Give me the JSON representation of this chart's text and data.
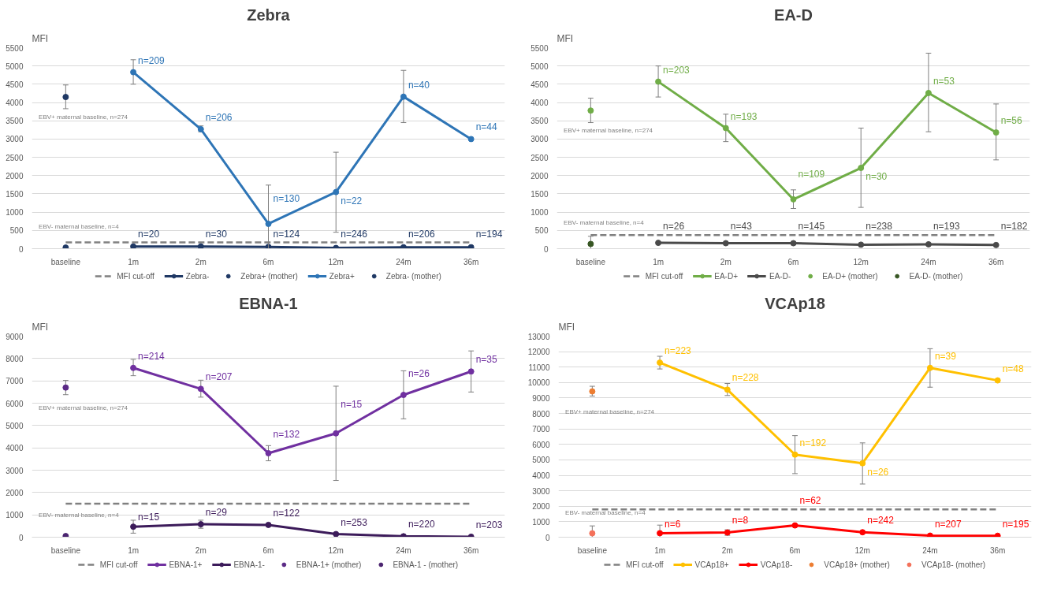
{
  "chart_data": [
    {
      "type": "line",
      "title": "Zebra",
      "ylabel": "MFI",
      "categories": [
        "baseline",
        "1m",
        "2m",
        "6m",
        "12m",
        "24m",
        "36m"
      ],
      "ylim": [
        0,
        5500
      ],
      "yticks": [
        0,
        500,
        1000,
        1500,
        2000,
        2500,
        3000,
        3500,
        4000,
        4500,
        5000,
        5500
      ],
      "grid": "y",
      "legend": "bottom",
      "annotations": [
        {
          "text": "EBV+ maternal baseline, n=274",
          "x": "baseline",
          "y": 4150
        },
        {
          "text": "EBV- maternal baseline, n=4",
          "x": "baseline",
          "y": 30
        },
        {
          "text": "n=20",
          "x": "1m",
          "y": 60
        },
        {
          "text": "n=30",
          "x": "2m",
          "y": 60
        },
        {
          "text": "n=124",
          "x": "6m",
          "y": 50
        },
        {
          "text": "n=246",
          "x": "12m",
          "y": 20
        },
        {
          "text": "n=206",
          "x": "24m",
          "y": 40
        },
        {
          "text": "n=194",
          "x": "36m",
          "y": 40
        },
        {
          "text": "n=209",
          "x": "1m",
          "y": 4830
        },
        {
          "text": "n=206",
          "x": "2m",
          "y": 3270
        },
        {
          "text": "n=130",
          "x": "6m",
          "y": 680
        },
        {
          "text": "n=22",
          "x": "12m",
          "y": 1550
        },
        {
          "text": "n=40",
          "x": "24m",
          "y": 4160
        },
        {
          "text": "n=44",
          "x": "36m",
          "y": 3000
        }
      ],
      "series": [
        {
          "name": "MFI cut-off",
          "type": "line",
          "color": "#808080",
          "line_style": "dashed",
          "marker": "none",
          "values": [
            170,
            170,
            170,
            170,
            170,
            170,
            170
          ]
        },
        {
          "name": "Zebra-",
          "type": "line",
          "color": "#1f3864",
          "marker": "circle",
          "values": [
            null,
            60,
            60,
            50,
            20,
            40,
            40
          ]
        },
        {
          "name": "Zebra+ (mother)",
          "type": "scatter",
          "color": "#1f3864",
          "marker": "circle",
          "values": [
            4150,
            null,
            null,
            null,
            null,
            null,
            null
          ],
          "errors": [
            [
              3830,
              4480
            ],
            null,
            null,
            null,
            null,
            null,
            null
          ]
        },
        {
          "name": "Zebra+",
          "type": "line",
          "color": "#2e75b6",
          "marker": "circle",
          "values": [
            null,
            4830,
            3270,
            680,
            1550,
            4160,
            3000
          ],
          "errors": [
            null,
            [
              4500,
              5170
            ],
            [
              3200,
              3360
            ],
            [
              0,
              1740
            ],
            [
              450,
              2640
            ],
            [
              3450,
              4880
            ],
            null
          ]
        },
        {
          "name": "Zebra- (mother)",
          "type": "scatter",
          "color": "#1f3864",
          "marker": "circle",
          "values": [
            30,
            null,
            null,
            null,
            null,
            null,
            null
          ]
        }
      ]
    },
    {
      "type": "line",
      "title": "EA-D",
      "ylabel": "MFI",
      "categories": [
        "baseline",
        "1m",
        "2m",
        "6m",
        "12m",
        "24m",
        "36m"
      ],
      "ylim": [
        0,
        5500
      ],
      "yticks": [
        0,
        500,
        1000,
        1500,
        2000,
        2500,
        3000,
        3500,
        4000,
        4500,
        5000,
        5500
      ],
      "grid": "y",
      "legend": "bottom",
      "annotations": [
        {
          "text": "EBV+ maternal baseline, n=274",
          "x": "baseline",
          "y": 3780
        },
        {
          "text": "EBV- maternal baseline, n=4",
          "x": "baseline",
          "y": 130
        },
        {
          "text": "n=203",
          "x": "1m",
          "y": 4570
        },
        {
          "text": "n=193",
          "x": "2m",
          "y": 3300
        },
        {
          "text": "n=109",
          "x": "6m",
          "y": 1350
        },
        {
          "text": "n=30",
          "x": "12m",
          "y": 2210
        },
        {
          "text": "n=53",
          "x": "24m",
          "y": 4260
        },
        {
          "text": "n=56",
          "x": "36m",
          "y": 3180
        },
        {
          "text": "n=26",
          "x": "1m",
          "y": 160
        },
        {
          "text": "n=43",
          "x": "2m",
          "y": 150
        },
        {
          "text": "n=145",
          "x": "6m",
          "y": 150
        },
        {
          "text": "n=238",
          "x": "12m",
          "y": 110
        },
        {
          "text": "n=193",
          "x": "24m",
          "y": 120
        },
        {
          "text": "n=182",
          "x": "36m",
          "y": 100
        }
      ],
      "series": [
        {
          "name": "MFI cut-off",
          "type": "line",
          "color": "#808080",
          "line_style": "dashed",
          "marker": "none",
          "values": [
            370,
            370,
            370,
            370,
            370,
            370,
            370
          ]
        },
        {
          "name": "EA-D+",
          "type": "line",
          "color": "#70ad47",
          "marker": "circle",
          "values": [
            null,
            4570,
            3300,
            1350,
            2210,
            4260,
            3180
          ],
          "errors": [
            null,
            [
              4150,
              5000
            ],
            [
              2930,
              3680
            ],
            [
              1100,
              1610
            ],
            [
              1130,
              3300
            ],
            [
              3200,
              5350
            ],
            [
              2430,
              3960
            ]
          ]
        },
        {
          "name": "EA-D-",
          "type": "line",
          "color": "#4a4a4a",
          "marker": "circle",
          "values": [
            null,
            160,
            150,
            150,
            110,
            120,
            100
          ]
        },
        {
          "name": "EA-D+ (mother)",
          "type": "scatter",
          "color": "#70ad47",
          "marker": "circle",
          "values": [
            3780,
            null,
            null,
            null,
            null,
            null,
            null
          ],
          "errors": [
            [
              3450,
              4120
            ],
            null,
            null,
            null,
            null,
            null,
            null
          ]
        },
        {
          "name": "EA-D- (mother)",
          "type": "scatter",
          "color": "#375623",
          "marker": "circle",
          "values": [
            130,
            null,
            null,
            null,
            null,
            null,
            null
          ],
          "errors": [
            [
              0,
              340
            ],
            null,
            null,
            null,
            null,
            null,
            null
          ]
        }
      ]
    },
    {
      "type": "line",
      "title": "EBNA-1",
      "ylabel": "MFI",
      "categories": [
        "baseline",
        "1m",
        "2m",
        "6m",
        "12m",
        "24m",
        "36m"
      ],
      "ylim": [
        0,
        9000
      ],
      "yticks": [
        0,
        1000,
        2000,
        3000,
        4000,
        5000,
        6000,
        7000,
        8000,
        9000
      ],
      "grid": "y",
      "legend": "bottom",
      "annotations": [
        {
          "text": "EBV+ maternal baseline, n=274",
          "x": "baseline",
          "y": 6700
        },
        {
          "text": "EBV- maternal baseline, n=4",
          "x": "baseline",
          "y": 50
        },
        {
          "text": "n=214",
          "x": "1m",
          "y": 7580
        },
        {
          "text": "n=207",
          "x": "2m",
          "y": 6640
        },
        {
          "text": "n=132",
          "x": "6m",
          "y": 3760
        },
        {
          "text": "n=15",
          "x": "12m",
          "y": 4650
        },
        {
          "text": "n=26",
          "x": "24m",
          "y": 6370
        },
        {
          "text": "n=35",
          "x": "36m",
          "y": 7420
        },
        {
          "text": "n=15",
          "x": "1m",
          "y": 470
        },
        {
          "text": "n=29",
          "x": "2m",
          "y": 580
        },
        {
          "text": "n=122",
          "x": "6m",
          "y": 550
        },
        {
          "text": "n=253",
          "x": "12m",
          "y": 140
        },
        {
          "text": "n=220",
          "x": "24m",
          "y": 40
        },
        {
          "text": "n=203",
          "x": "36m",
          "y": 20
        }
      ],
      "series": [
        {
          "name": "MFI cut-off",
          "type": "line",
          "color": "#808080",
          "line_style": "dashed",
          "marker": "none",
          "values": [
            1500,
            1500,
            1500,
            1500,
            1500,
            1500,
            1500
          ]
        },
        {
          "name": "EBNA-1+",
          "type": "line",
          "color": "#7030a0",
          "marker": "circle",
          "values": [
            null,
            7580,
            6640,
            3760,
            4650,
            6370,
            7420
          ],
          "errors": [
            null,
            [
              7230,
              7960
            ],
            [
              6270,
              7030
            ],
            [
              3420,
              4100
            ],
            [
              2540,
              6760
            ],
            [
              5300,
              7450
            ],
            [
              6500,
              8340
            ]
          ]
        },
        {
          "name": "EBNA-1-",
          "type": "line",
          "color": "#3c1b5a",
          "marker": "circle",
          "values": [
            null,
            470,
            580,
            550,
            140,
            40,
            20
          ],
          "errors": [
            null,
            [
              180,
              760
            ],
            [
              400,
              760
            ],
            [
              490,
              610
            ],
            null,
            null,
            null
          ]
        },
        {
          "name": "EBNA-1+ (mother)",
          "type": "scatter",
          "color": "#5b2a86",
          "marker": "circle",
          "values": [
            6700,
            null,
            null,
            null,
            null,
            null,
            null
          ],
          "errors": [
            [
              6380,
              7020
            ],
            null,
            null,
            null,
            null,
            null,
            null
          ]
        },
        {
          "name": "EBNA-1 - (mother)",
          "type": "scatter",
          "color": "#4b2470",
          "marker": "circle",
          "values": [
            50,
            null,
            null,
            null,
            null,
            null,
            null
          ]
        }
      ]
    },
    {
      "type": "line",
      "title": "VCAp18",
      "ylabel": "MFI",
      "categories": [
        "baseline",
        "1m",
        "2m",
        "6m",
        "12m",
        "24m",
        "36m"
      ],
      "ylim": [
        0,
        13000
      ],
      "yticks": [
        0,
        1000,
        2000,
        3000,
        4000,
        5000,
        6000,
        7000,
        8000,
        9000,
        10000,
        11000,
        12000,
        13000
      ],
      "grid": "y",
      "legend": "bottom",
      "annotations": [
        {
          "text": "EBV+ maternal baseline, n=274",
          "x": "baseline",
          "y": 9430
        },
        {
          "text": "EBV- maternal baseline, n=4",
          "x": "baseline",
          "y": 250
        },
        {
          "text": "n=223",
          "x": "1m",
          "y": 11290
        },
        {
          "text": "n=228",
          "x": "2m",
          "y": 9540
        },
        {
          "text": "n=192",
          "x": "6m",
          "y": 5340
        },
        {
          "text": "n=26",
          "x": "12m",
          "y": 4780
        },
        {
          "text": "n=39",
          "x": "24m",
          "y": 10950
        },
        {
          "text": "n=48",
          "x": "36m",
          "y": 10140
        },
        {
          "text": "n=6",
          "x": "1m",
          "y": 260
        },
        {
          "text": "n=8",
          "x": "2m",
          "y": 300
        },
        {
          "text": "n=62",
          "x": "6m",
          "y": 760
        },
        {
          "text": "n=242",
          "x": "12m",
          "y": 320
        },
        {
          "text": "n=207",
          "x": "24m",
          "y": 100
        },
        {
          "text": "n=195",
          "x": "36m",
          "y": 90
        }
      ],
      "series": [
        {
          "name": "MFI cut-off",
          "type": "line",
          "color": "#808080",
          "line_style": "dashed",
          "marker": "none",
          "values": [
            1800,
            1800,
            1800,
            1800,
            1800,
            1800,
            1800
          ]
        },
        {
          "name": "VCAp18+",
          "type": "line",
          "color": "#ffc000",
          "marker": "circle",
          "values": [
            null,
            11290,
            9540,
            5340,
            4780,
            10950,
            10140
          ],
          "errors": [
            null,
            [
              10880,
              11700
            ],
            [
              9160,
              9940
            ],
            [
              4110,
              6570
            ],
            [
              3440,
              6100
            ],
            [
              9700,
              12190
            ],
            null
          ]
        },
        {
          "name": "VCAp18-",
          "type": "line",
          "color": "#ff0000",
          "marker": "circle",
          "values": [
            null,
            260,
            300,
            760,
            320,
            100,
            90
          ],
          "errors": [
            null,
            [
              0,
              780
            ],
            [
              120,
              480
            ],
            null,
            null,
            null,
            null
          ]
        },
        {
          "name": "VCAp18+ (mother)",
          "type": "scatter",
          "color": "#ed7d31",
          "marker": "circle",
          "values": [
            9430,
            null,
            null,
            null,
            null,
            null,
            null
          ],
          "errors": [
            [
              9130,
              9760
            ],
            null,
            null,
            null,
            null,
            null,
            null
          ]
        },
        {
          "name": "VCAp18- (mother)",
          "type": "scatter",
          "color": "#f4715a",
          "marker": "circle",
          "values": [
            250,
            null,
            null,
            null,
            null,
            null,
            null
          ],
          "errors": [
            [
              0,
              730
            ],
            null,
            null,
            null,
            null,
            null,
            null
          ]
        }
      ]
    }
  ]
}
